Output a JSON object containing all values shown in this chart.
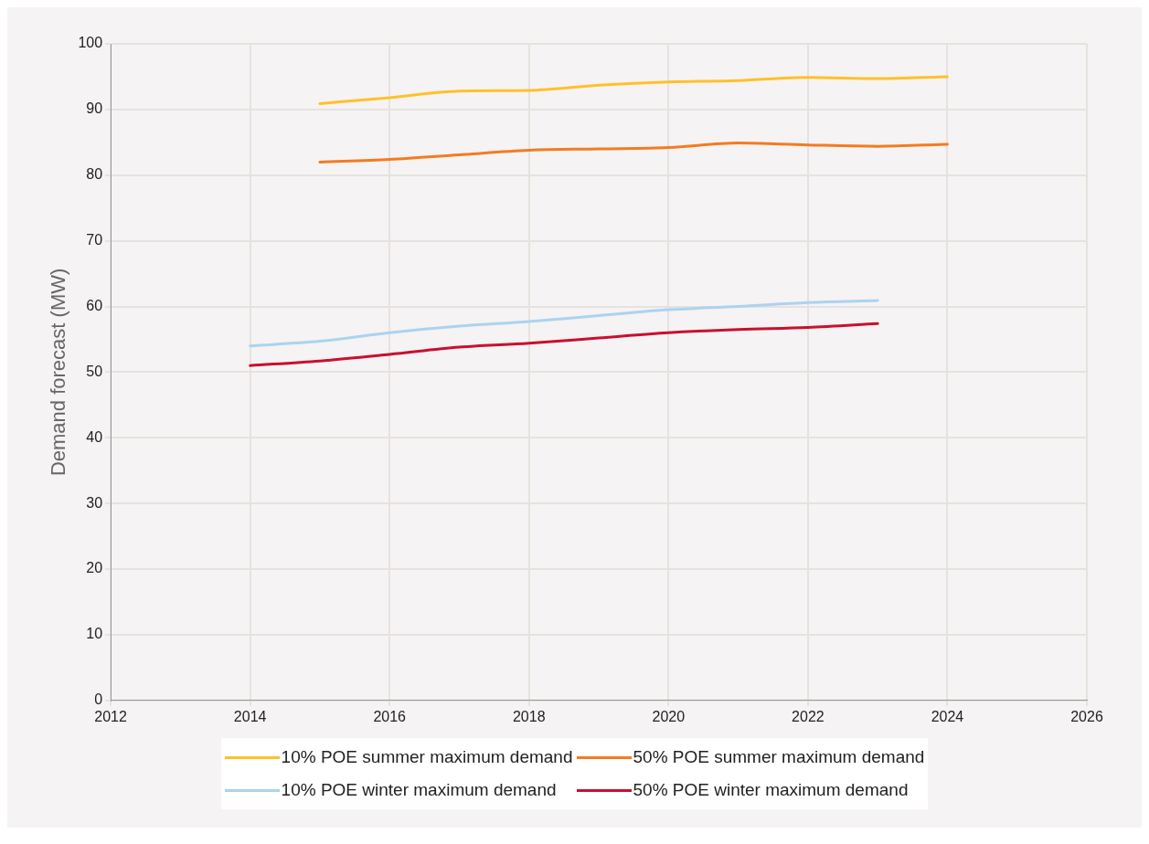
{
  "chart_data": {
    "type": "line",
    "ylabel": "Demand forecast (MW)",
    "xlim": [
      2012,
      2026
    ],
    "xticks": [
      2012,
      2014,
      2016,
      2018,
      2020,
      2022,
      2024,
      2026
    ],
    "ylim": [
      0,
      100
    ],
    "yticks": [
      0,
      10,
      20,
      30,
      40,
      50,
      60,
      70,
      80,
      90,
      100
    ],
    "grid": true,
    "legend": "bottom",
    "marker": "none",
    "line_style": "solid",
    "series": [
      {
        "name": "10% POE summer maximum demand",
        "color": "#ffc02b",
        "x": [
          2015,
          2016,
          2017,
          2018,
          2019,
          2020,
          2021,
          2022,
          2023,
          2024
        ],
        "values": [
          90.9,
          91.8,
          92.8,
          92.9,
          93.7,
          94.2,
          94.4,
          94.9,
          94.7,
          95.0
        ]
      },
      {
        "name": "50% POE summer maximum demand",
        "color": "#f47b20",
        "x": [
          2015,
          2016,
          2017,
          2018,
          2019,
          2020,
          2021,
          2022,
          2023,
          2024
        ],
        "values": [
          82.0,
          82.4,
          83.1,
          83.8,
          84.0,
          84.2,
          84.9,
          84.6,
          84.4,
          84.7
        ]
      },
      {
        "name": "10% POE winter maximum demand",
        "color": "#abd3f0",
        "x": [
          2014,
          2015,
          2016,
          2017,
          2018,
          2019,
          2020,
          2021,
          2022,
          2023
        ],
        "values": [
          54.0,
          54.7,
          56.0,
          57.0,
          57.7,
          58.6,
          59.5,
          60.0,
          60.6,
          60.9
        ]
      },
      {
        "name": "50% POE winter maximum demand",
        "color": "#c8102e",
        "x": [
          2014,
          2015,
          2016,
          2017,
          2018,
          2019,
          2020,
          2021,
          2022,
          2023
        ],
        "values": [
          51.0,
          51.7,
          52.7,
          53.8,
          54.4,
          55.2,
          56.0,
          56.5,
          56.8,
          57.4
        ]
      }
    ]
  }
}
